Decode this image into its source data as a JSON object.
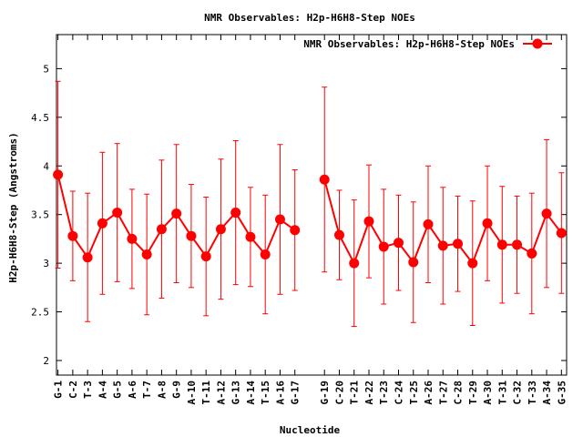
{
  "chart_data": {
    "type": "line",
    "title": "NMR Observables: H2p-H6H8-Step NOEs",
    "xlabel": "Nucleotide",
    "ylabel": "H2p-H6H8-Step (Angstroms)",
    "ylim": [
      1.85,
      5.35
    ],
    "yticks": [
      2,
      2.5,
      3,
      3.5,
      4,
      4.5,
      5
    ],
    "legend_position": "top-right",
    "grid": false,
    "series": [
      {
        "name": "NMR Observables: H2p-H6H8-Step NOEs",
        "color": "#ff0000",
        "segments": [
          {
            "x": [
              1,
              2,
              3,
              4,
              5,
              6,
              7,
              8,
              9,
              10,
              11,
              12,
              13,
              14,
              15,
              16,
              17
            ],
            "labels": [
              "G-1",
              "C-2",
              "T-3",
              "A-4",
              "G-5",
              "A-6",
              "T-7",
              "A-8",
              "G-9",
              "A-10",
              "T-11",
              "A-12",
              "G-13",
              "A-14",
              "T-15",
              "A-16",
              "G-17"
            ],
            "y": [
              3.91,
              3.28,
              3.06,
              3.41,
              3.52,
              3.25,
              3.09,
              3.35,
              3.51,
              3.28,
              3.07,
              3.35,
              3.52,
              3.27,
              3.09,
              3.45,
              3.34
            ],
            "yerr": [
              0.96,
              0.46,
              0.66,
              0.73,
              0.71,
              0.51,
              0.62,
              0.71,
              0.71,
              0.53,
              0.61,
              0.72,
              0.74,
              0.51,
              0.61,
              0.77,
              0.62
            ]
          },
          {
            "x": [
              19,
              20,
              21,
              22,
              23,
              24,
              25,
              26,
              27,
              28,
              29,
              30,
              31,
              32,
              33,
              34,
              35
            ],
            "labels": [
              "G-19",
              "C-20",
              "T-21",
              "A-22",
              "T-23",
              "C-24",
              "T-25",
              "A-26",
              "T-27",
              "C-28",
              "T-29",
              "A-30",
              "T-31",
              "C-32",
              "T-33",
              "A-34",
              "G-35"
            ],
            "y": [
              3.86,
              3.29,
              3.0,
              3.43,
              3.17,
              3.21,
              3.01,
              3.4,
              3.18,
              3.2,
              3.0,
              3.41,
              3.19,
              3.19,
              3.1,
              3.51,
              3.31
            ],
            "yerr": [
              0.95,
              0.46,
              0.65,
              0.58,
              0.59,
              0.49,
              0.62,
              0.6,
              0.6,
              0.49,
              0.64,
              0.59,
              0.6,
              0.5,
              0.62,
              0.76,
              0.62
            ]
          }
        ]
      }
    ]
  }
}
